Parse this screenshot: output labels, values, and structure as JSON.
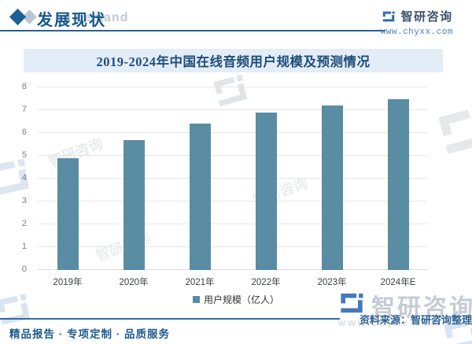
{
  "header": {
    "title": "发展现状",
    "watermark_text": "d demand"
  },
  "brand": {
    "name": "智研咨询",
    "website": "www.chyxx.com"
  },
  "chart_data": {
    "type": "bar",
    "title": "2019-2024年中国在线音频用户规模及预测情况",
    "categories": [
      "2019年",
      "2020年",
      "2021年",
      "2022年",
      "2023年",
      "2024年E"
    ],
    "values": [
      4.9,
      5.7,
      6.4,
      6.9,
      7.2,
      7.5
    ],
    "series_name": "用户规模（亿人）",
    "xlabel": "",
    "ylabel": "",
    "ylim": [
      0,
      8
    ],
    "yticks": [
      0,
      1,
      2,
      3,
      4,
      5,
      6,
      7,
      8
    ],
    "grid": true,
    "legend_position": "bottom",
    "bar_color": "#5a8ca4"
  },
  "footer": {
    "slogan": "精品报告 · 专项定制 · 品质服务",
    "source": "资料来源：智研咨询整理"
  },
  "colors": {
    "bar": "#5a8ca4",
    "accent_dark_blue": "#1f4e79",
    "header_blue": "#17578c",
    "banner_bg": "#e3edf8",
    "gridline": "#e3e5e8",
    "logo_blue": "#2f6cb3",
    "watermark_gray": "#c6ccd3"
  }
}
